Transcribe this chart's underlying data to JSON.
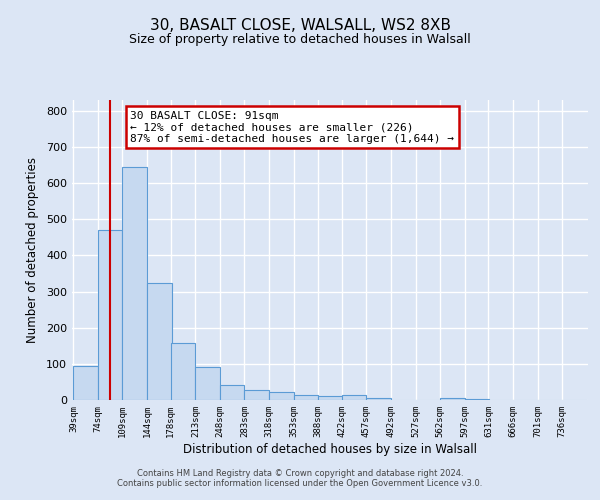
{
  "title": "30, BASALT CLOSE, WALSALL, WS2 8XB",
  "subtitle": "Size of property relative to detached houses in Walsall",
  "xlabel": "Distribution of detached houses by size in Walsall",
  "ylabel": "Number of detached properties",
  "bar_labels": [
    "39sqm",
    "74sqm",
    "109sqm",
    "144sqm",
    "178sqm",
    "213sqm",
    "248sqm",
    "283sqm",
    "318sqm",
    "353sqm",
    "388sqm",
    "422sqm",
    "457sqm",
    "492sqm",
    "527sqm",
    "562sqm",
    "597sqm",
    "631sqm",
    "666sqm",
    "701sqm",
    "736sqm"
  ],
  "bar_heights": [
    95,
    470,
    645,
    325,
    158,
    90,
    42,
    28,
    22,
    15,
    12,
    13,
    5,
    0,
    0,
    5,
    2,
    0,
    0,
    0,
    0
  ],
  "bar_color": "#c6d9f0",
  "bar_edge_color": "#5b9bd5",
  "property_line_label": "30 BASALT CLOSE: 91sqm",
  "annotation_line1": "← 12% of detached houses are smaller (226)",
  "annotation_line2": "87% of semi-detached houses are larger (1,644) →",
  "annotation_box_color": "#ffffff",
  "annotation_box_edge": "#cc0000",
  "vline_color": "#cc0000",
  "vline_x": 91,
  "ylim": [
    0,
    830
  ],
  "yticks": [
    0,
    100,
    200,
    300,
    400,
    500,
    600,
    700,
    800
  ],
  "background_color": "#dce6f5",
  "plot_bg_color": "#dce6f5",
  "grid_color": "#ffffff",
  "footer_line1": "Contains HM Land Registry data © Crown copyright and database right 2024.",
  "footer_line2": "Contains public sector information licensed under the Open Government Licence v3.0."
}
